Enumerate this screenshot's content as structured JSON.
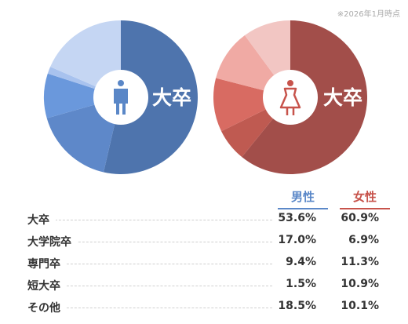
{
  "note": "※2026年1月時点",
  "headers": {
    "male": "男性",
    "female": "女性"
  },
  "colors": {
    "male": [
      "#4e74ad",
      "#5e88c9",
      "#6a98dc",
      "#a8c2ee",
      "#c5d6f3"
    ],
    "female": [
      "#a24e4a",
      "#bf5a51",
      "#d86b62",
      "#f0aaa4",
      "#f2c6c3"
    ]
  },
  "chart_data": [
    {
      "type": "pie",
      "center_label": "大卒",
      "icon": "male-person-icon",
      "categories": [
        "大卒",
        "大学院卒",
        "専門卒",
        "短大卒",
        "その他"
      ],
      "values": [
        53.6,
        17.0,
        9.4,
        1.5,
        18.5
      ]
    },
    {
      "type": "pie",
      "center_label": "大卒",
      "icon": "female-person-icon",
      "categories": [
        "大卒",
        "大学院卒",
        "専門卒",
        "短大卒",
        "その他"
      ],
      "values": [
        60.9,
        6.9,
        11.3,
        10.9,
        10.1
      ]
    }
  ],
  "rows": [
    {
      "label": "大卒",
      "male": "53.6%",
      "female": "60.9%"
    },
    {
      "label": "大学院卒",
      "male": "17.0%",
      "female": "6.9%"
    },
    {
      "label": "専門卒",
      "male": "9.4%",
      "female": "11.3%"
    },
    {
      "label": "短大卒",
      "male": "1.5%",
      "female": "10.9%"
    },
    {
      "label": "その他",
      "male": "18.5%",
      "female": "10.1%"
    }
  ]
}
